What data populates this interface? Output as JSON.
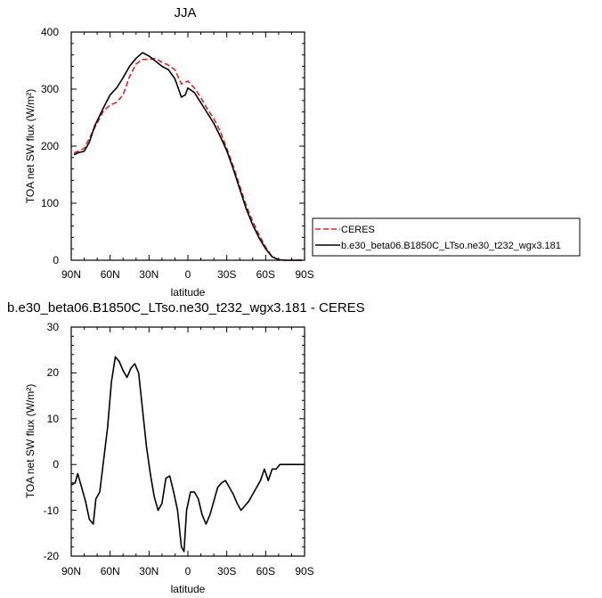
{
  "chart_data": [
    {
      "type": "line",
      "title": "JJA",
      "xlabel": "latitude",
      "ylabel": "TOA net SW flux (W/m²)",
      "xlim": [
        90,
        -90
      ],
      "ylim": [
        0,
        400
      ],
      "xtick_labels": [
        "90N",
        "60N",
        "30N",
        "0",
        "30S",
        "60S",
        "90S"
      ],
      "xtick_values": [
        90,
        60,
        30,
        0,
        -30,
        -60,
        -90
      ],
      "yticks": [
        0,
        100,
        200,
        300,
        400
      ],
      "legend": "right",
      "series": [
        {
          "name": "CERES",
          "color": "#e8201e",
          "dash": "dashed",
          "x": [
            88,
            80,
            72,
            65,
            60,
            55,
            50,
            45,
            40,
            35,
            30,
            25,
            20,
            15,
            10,
            5,
            0,
            -5,
            -10,
            -15,
            -20,
            -25,
            -30,
            -35,
            -40,
            -45,
            -50,
            -55,
            -60,
            -65,
            -70,
            -75,
            -80,
            -88
          ],
          "y": [
            188,
            196,
            232,
            262,
            272,
            277,
            290,
            322,
            344,
            352,
            352,
            354,
            347,
            342,
            334,
            309,
            314,
            302,
            285,
            265,
            248,
            226,
            196,
            165,
            130,
            96,
            68,
            44,
            23,
            6,
            1,
            0,
            0,
            0
          ]
        },
        {
          "name": "b.e30_beta06.B1850C_LTso.ne30_t232_wgx3.181",
          "color": "#000000",
          "dash": "solid",
          "x": [
            88,
            84,
            80,
            76,
            72,
            65,
            60,
            55,
            50,
            45,
            40,
            35,
            30,
            25,
            20,
            15,
            10,
            5,
            2,
            0,
            -5,
            -10,
            -15,
            -20,
            -25,
            -30,
            -35,
            -40,
            -45,
            -50,
            -55,
            -60,
            -65,
            -70,
            -75,
            -80,
            -88
          ],
          "y": [
            185,
            189,
            191,
            207,
            235,
            268,
            290,
            302,
            320,
            340,
            354,
            364,
            358,
            349,
            340,
            334,
            318,
            286,
            290,
            302,
            294,
            276,
            258,
            240,
            217,
            192,
            160,
            125,
            90,
            62,
            39,
            20,
            6,
            1,
            0,
            0,
            0
          ]
        }
      ]
    },
    {
      "type": "line",
      "title": "b.e30_beta06.B1850C_LTso.ne30_t232_wgx3.181 - CERES",
      "xlabel": "latitude",
      "ylabel": "TOA net SW flux (W/m²)",
      "xlim": [
        90,
        -90
      ],
      "ylim": [
        -20,
        30
      ],
      "xtick_labels": [
        "90N",
        "60N",
        "30N",
        "0",
        "30S",
        "60S",
        "90S"
      ],
      "xtick_values": [
        90,
        60,
        30,
        0,
        -30,
        -60,
        -90
      ],
      "yticks": [
        -20,
        -10,
        0,
        10,
        20,
        30
      ],
      "series": [
        {
          "color": "#000000",
          "dash": "solid",
          "x": [
            90,
            87,
            85,
            82,
            79,
            76,
            73,
            71,
            68,
            65,
            62,
            59,
            56,
            53,
            50,
            47,
            44,
            41,
            38,
            35,
            32,
            29,
            26,
            23,
            20,
            17,
            14,
            11,
            8,
            5,
            3,
            1,
            -2,
            -5,
            -8,
            -11,
            -14,
            -17,
            -20,
            -23,
            -26,
            -29,
            -32,
            -35,
            -38,
            -41,
            -44,
            -47,
            -50,
            -53,
            -56,
            -59,
            -62,
            -65,
            -68,
            -71,
            -74,
            -77,
            -80,
            -83,
            -86,
            -90
          ],
          "y": [
            -4.5,
            -4,
            -2,
            -5,
            -8,
            -12,
            -13,
            -7.5,
            -6,
            1,
            8,
            18,
            23.5,
            22.5,
            20.5,
            19,
            21,
            22,
            20,
            12,
            4,
            -2,
            -7,
            -10,
            -8.5,
            -3,
            -2.5,
            -6,
            -10,
            -18,
            -19,
            -10,
            -6,
            -6,
            -7.5,
            -11,
            -13,
            -11,
            -8,
            -5,
            -4,
            -3.5,
            -5,
            -6.5,
            -8.5,
            -10,
            -9,
            -8,
            -6.5,
            -5,
            -3.5,
            -1,
            -3.5,
            -1,
            -1,
            0,
            0,
            0,
            0,
            0,
            0,
            0
          ]
        }
      ]
    }
  ]
}
